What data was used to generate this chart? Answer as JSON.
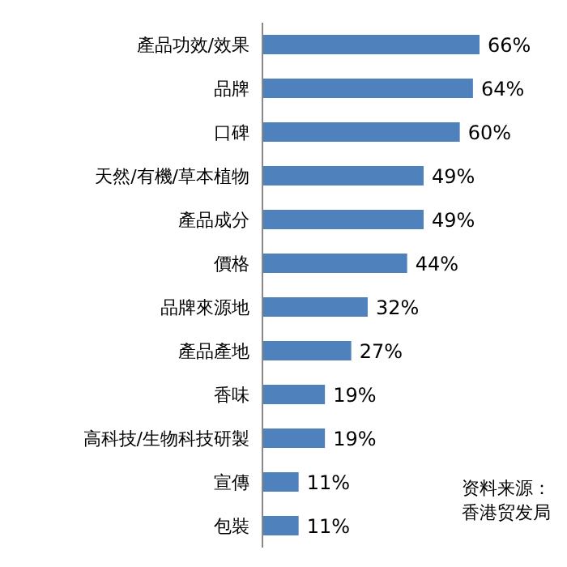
{
  "chart_data": {
    "type": "bar",
    "orientation": "horizontal",
    "categories": [
      "產品功效/效果",
      "品牌",
      "口碑",
      "天然/有機/草本植物",
      "產品成分",
      "價格",
      "品牌來源地",
      "產品產地",
      "香味",
      "高科技/生物科技研製",
      "宣傳",
      "包裝"
    ],
    "values": [
      66,
      64,
      60,
      49,
      49,
      44,
      32,
      27,
      19,
      19,
      11,
      11
    ],
    "value_labels": [
      "66%",
      "64%",
      "60%",
      "49%",
      "49%",
      "44%",
      "32%",
      "27%",
      "19%",
      "19%",
      "11%",
      "11%"
    ],
    "color": "#4f81bd",
    "tick_labels": "y",
    "annotations": [
      "资料来源：",
      "香港贸发局"
    ]
  }
}
